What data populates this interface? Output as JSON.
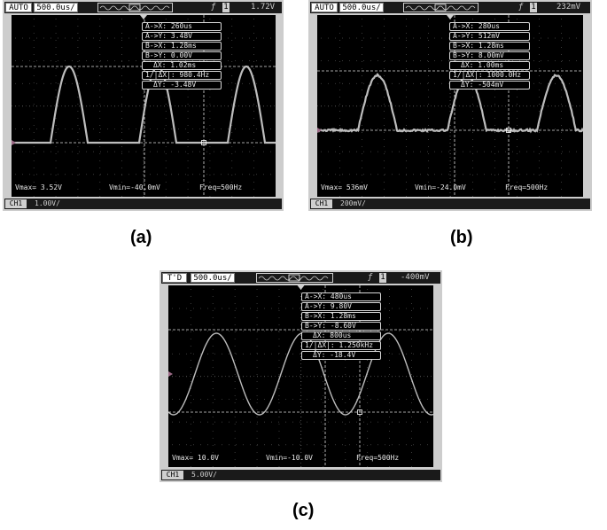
{
  "figures": [
    {
      "id": "a",
      "caption": "(a)",
      "trigger_mode": "AUTO",
      "timebase": "500.0us/",
      "trigger_level": "1.72V",
      "channel_scale": "1.00V/",
      "cursors": [
        "A->X: 260us",
        "A->Y:  3.48V",
        "B->X: 1.28ms",
        "B->Y:  0.00V",
        "ΔX: 1.02ms",
        "1/|ΔX|: 980.4Hz",
        "ΔY: -3.48V"
      ],
      "measurements": {
        "vmax": "Vmax= 3.52V",
        "vmin": "Vmin=-40.0mV",
        "freq": "Freq=500Hz"
      },
      "waveform": "half-sine-wide"
    },
    {
      "id": "b",
      "caption": "(b)",
      "trigger_mode": "AUTO",
      "timebase": "500.0us/",
      "trigger_level": "232mV",
      "channel_scale": "200mV/",
      "cursors": [
        "A->X: 280us",
        "A->Y: 512mV",
        "B->X: 1.28ms",
        "B->Y: 8.00mV",
        "ΔX: 1.00ms",
        "1/|ΔX|: 1000.0Hz",
        "ΔY: -504mV"
      ],
      "measurements": {
        "vmax": "Vmax= 536mV",
        "vmin": "Vmin=-24.0mV",
        "freq": "Freq=500Hz"
      },
      "waveform": "half-sine-noisy"
    },
    {
      "id": "c",
      "caption": "(c)",
      "trigger_mode": "T'D",
      "timebase": "500.0us/",
      "trigger_level": "-400mV",
      "channel_scale": "5.00V/",
      "cursors": [
        "A->X: 480us",
        "A->Y:  9.80V",
        "B->X: 1.28ms",
        "B->Y: -8.60V",
        "ΔX: 800us",
        "1/|ΔX|: 1.250kHz",
        "ΔY: -18.4V"
      ],
      "measurements": {
        "vmax": "Vmax= 10.0V",
        "vmin": "Vmin=-10.0V",
        "freq": "Freq=500Hz"
      },
      "waveform": "sine"
    }
  ],
  "colors": {
    "bezel": "#cdcdcd",
    "screen": "#000000",
    "trace": "#bdbdbd",
    "text": "#e8e8e8"
  },
  "icons": {
    "trigger_edge": "rising-edge-icon",
    "channel": "channel1-icon"
  }
}
